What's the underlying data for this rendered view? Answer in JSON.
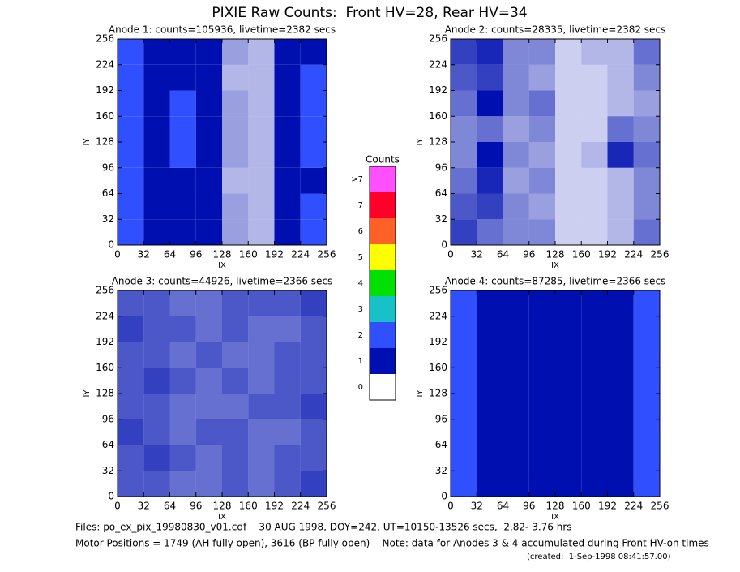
{
  "title": "PIXIE Raw Counts:  Front HV=28, Rear HV=34",
  "chart_data": [
    {
      "type": "heatmap",
      "title": "Anode 1: counts=105936, livetime=2382 secs",
      "xlabel": "IX",
      "ylabel": "IY",
      "xlim": [
        0,
        256
      ],
      "ylim": [
        0,
        256
      ],
      "xticks": [
        0,
        32,
        64,
        96,
        128,
        160,
        192,
        224,
        256
      ],
      "yticks": [
        0,
        32,
        64,
        96,
        128,
        160,
        192,
        224,
        256
      ],
      "values": [
        [
          2.6,
          1.4,
          1.5,
          1.0,
          0.4,
          0.3,
          1.2,
          2.2
        ],
        [
          2.8,
          1.6,
          1.7,
          1.1,
          0.4,
          0.3,
          1.3,
          2.0
        ],
        [
          2.7,
          1.5,
          1.6,
          1.1,
          0.3,
          0.3,
          1.4,
          1.8
        ],
        [
          2.9,
          1.7,
          2.2,
          1.2,
          0.4,
          0.3,
          1.6,
          2.6
        ],
        [
          2.8,
          1.6,
          2.0,
          1.2,
          0.4,
          0.3,
          1.8,
          2.8
        ],
        [
          2.9,
          1.7,
          2.3,
          1.2,
          0.4,
          0.3,
          1.4,
          2.4
        ],
        [
          2.7,
          1.6,
          1.8,
          1.1,
          0.3,
          0.3,
          1.2,
          2.0
        ],
        [
          2.8,
          1.5,
          1.7,
          1.0,
          0.4,
          0.3,
          1.1,
          1.9
        ]
      ]
    },
    {
      "type": "heatmap",
      "title": "Anode 2: counts=28335, livetime=2382 secs",
      "xlabel": "IX",
      "ylabel": "IY",
      "xlim": [
        0,
        256
      ],
      "ylim": [
        0,
        256
      ],
      "xticks": [
        0,
        32,
        64,
        96,
        128,
        160,
        192,
        224,
        256
      ],
      "yticks": [
        0,
        32,
        64,
        96,
        128,
        160,
        192,
        224,
        256
      ],
      "values": [
        [
          0.8,
          0.6,
          0.5,
          0.5,
          0.2,
          0.2,
          0.3,
          0.6
        ],
        [
          0.7,
          0.8,
          0.5,
          0.4,
          0.2,
          0.2,
          0.3,
          0.5
        ],
        [
          0.6,
          0.9,
          0.4,
          0.5,
          0.2,
          0.2,
          0.3,
          0.5
        ],
        [
          0.5,
          1.0,
          0.5,
          0.4,
          0.2,
          0.3,
          0.9,
          0.6
        ],
        [
          0.5,
          0.6,
          0.4,
          0.5,
          0.2,
          0.2,
          0.6,
          0.5
        ],
        [
          0.6,
          1.0,
          0.5,
          0.6,
          0.2,
          0.2,
          0.3,
          0.4
        ],
        [
          0.7,
          0.8,
          0.5,
          0.4,
          0.2,
          0.2,
          0.3,
          0.5
        ],
        [
          0.8,
          0.9,
          0.5,
          0.5,
          0.2,
          0.3,
          0.3,
          0.6
        ]
      ]
    },
    {
      "type": "heatmap",
      "title": "Anode 3: counts=44926, livetime=2366 secs",
      "xlabel": "IX",
      "ylabel": "IY",
      "xlim": [
        0,
        256
      ],
      "ylim": [
        0,
        256
      ],
      "xticks": [
        0,
        32,
        64,
        96,
        128,
        160,
        192,
        224,
        256
      ],
      "yticks": [
        0,
        32,
        64,
        96,
        128,
        160,
        192,
        224,
        256
      ],
      "values": [
        [
          0.7,
          0.7,
          0.6,
          0.6,
          0.7,
          0.6,
          0.7,
          0.8
        ],
        [
          0.7,
          0.8,
          0.7,
          0.6,
          0.7,
          0.6,
          0.7,
          0.7
        ],
        [
          0.8,
          0.7,
          0.6,
          0.7,
          0.7,
          0.6,
          0.6,
          0.7
        ],
        [
          0.7,
          0.7,
          0.6,
          0.6,
          0.6,
          0.7,
          0.7,
          0.8
        ],
        [
          0.7,
          0.8,
          0.7,
          0.6,
          0.7,
          0.6,
          0.7,
          0.7
        ],
        [
          0.7,
          0.7,
          0.6,
          0.7,
          0.6,
          0.6,
          0.7,
          0.7
        ],
        [
          0.8,
          0.7,
          0.7,
          0.6,
          0.7,
          0.6,
          0.6,
          0.7
        ],
        [
          0.7,
          0.7,
          0.6,
          0.6,
          0.7,
          0.7,
          0.7,
          0.8
        ]
      ]
    },
    {
      "type": "heatmap",
      "title": "Anode 4: counts=87285, livetime=2366 secs",
      "xlabel": "IX",
      "ylabel": "IY",
      "xlim": [
        0,
        256
      ],
      "ylim": [
        0,
        256
      ],
      "xticks": [
        0,
        32,
        64,
        96,
        128,
        160,
        192,
        224,
        256
      ],
      "yticks": [
        0,
        32,
        64,
        96,
        128,
        160,
        192,
        224,
        256
      ],
      "values": [
        [
          2.4,
          1.3,
          1.2,
          1.1,
          1.1,
          1.0,
          1.2,
          2.3
        ],
        [
          2.6,
          1.4,
          1.2,
          1.2,
          1.1,
          1.1,
          1.2,
          2.4
        ],
        [
          2.5,
          1.3,
          1.1,
          1.1,
          1.2,
          1.0,
          1.3,
          2.5
        ],
        [
          2.6,
          1.3,
          1.2,
          1.1,
          1.1,
          1.1,
          1.2,
          2.4
        ],
        [
          2.5,
          1.4,
          1.2,
          1.2,
          1.1,
          1.0,
          1.2,
          2.3
        ],
        [
          2.6,
          1.3,
          1.1,
          1.1,
          1.1,
          1.1,
          1.3,
          2.5
        ],
        [
          2.5,
          1.3,
          1.2,
          1.1,
          1.2,
          1.0,
          1.2,
          2.4
        ],
        [
          2.4,
          1.4,
          1.2,
          1.2,
          1.1,
          1.1,
          1.2,
          2.3
        ]
      ]
    }
  ],
  "colorbar": {
    "title": "Counts",
    "levels": [
      0,
      1,
      2,
      3,
      4,
      5,
      6,
      7,
      {
        "value": 8,
        "label": ">7"
      }
    ],
    "colors": [
      "#ffffff",
      "#0010b0",
      "#3050ff",
      "#18c0c8",
      "#00e000",
      "#ffff00",
      "#ff6028",
      "#ff0028",
      "#ff50ff"
    ]
  },
  "footer": [
    "Files: po_ex_pix_19980830_v01.cdf    30 AUG 1998, DOY=242, UT=10150-13526 secs,  2.82- 3.76 hrs",
    "Motor Positions = 1749 (AH fully open), 3616 (BP fully open)    Note: data for Anodes 3 & 4 accumulated during Front HV-on times",
    "(created:  1-Sep-1998 08:41:57.00)"
  ]
}
